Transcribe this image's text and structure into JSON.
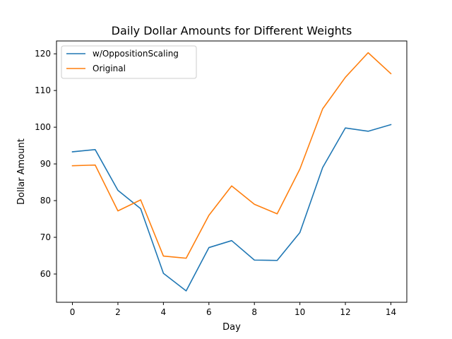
{
  "chart_data": {
    "type": "line",
    "title": "Daily Dollar Amounts for Different Weights",
    "xlabel": "Day",
    "ylabel": "Dollar Amount",
    "x": [
      0,
      1,
      2,
      3,
      4,
      5,
      6,
      7,
      8,
      9,
      10,
      11,
      12,
      13,
      14
    ],
    "xlim": [
      -0.7,
      14.7
    ],
    "ylim": [
      52.3,
      123.5
    ],
    "xticks": [
      0,
      2,
      4,
      6,
      8,
      10,
      12,
      14
    ],
    "yticks": [
      60,
      70,
      80,
      90,
      100,
      110,
      120
    ],
    "grid": false,
    "legend_position": "upper left",
    "series": [
      {
        "name": "w/OppositionScaling",
        "color": "#1f77b4",
        "values": [
          93.3,
          93.9,
          82.8,
          77.8,
          60.2,
          55.4,
          67.2,
          69.1,
          63.8,
          63.7,
          71.3,
          89.0,
          99.8,
          98.9,
          100.7
        ]
      },
      {
        "name": "Original",
        "color": "#ff7f0e",
        "values": [
          89.5,
          89.7,
          77.2,
          80.2,
          64.9,
          64.3,
          76.0,
          84.0,
          79.0,
          76.4,
          88.6,
          105.0,
          113.6,
          120.3,
          114.6
        ]
      }
    ]
  }
}
